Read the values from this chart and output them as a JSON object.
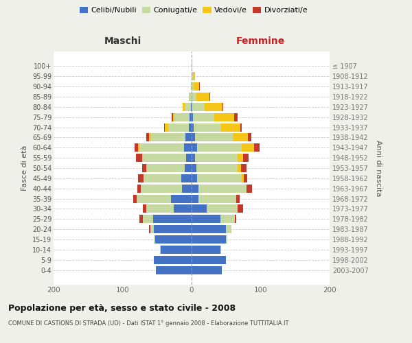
{
  "age_groups": [
    "0-4",
    "5-9",
    "10-14",
    "15-19",
    "20-24",
    "25-29",
    "30-34",
    "35-39",
    "40-44",
    "45-49",
    "50-54",
    "55-59",
    "60-64",
    "65-69",
    "70-74",
    "75-79",
    "80-84",
    "85-89",
    "90-94",
    "95-99",
    "100+"
  ],
  "birth_years": [
    "2003-2007",
    "1998-2002",
    "1993-1997",
    "1988-1992",
    "1983-1987",
    "1978-1982",
    "1973-1977",
    "1968-1972",
    "1963-1967",
    "1958-1962",
    "1953-1957",
    "1948-1952",
    "1943-1947",
    "1938-1942",
    "1933-1937",
    "1928-1932",
    "1923-1927",
    "1918-1922",
    "1913-1917",
    "1908-1912",
    "≤ 1907"
  ],
  "males_celibe": [
    52,
    55,
    45,
    53,
    55,
    56,
    26,
    30,
    14,
    15,
    10,
    8,
    11,
    9,
    4,
    3,
    1,
    0,
    0,
    0,
    0
  ],
  "males_coniugato": [
    0,
    0,
    1,
    2,
    5,
    15,
    40,
    50,
    60,
    55,
    55,
    63,
    65,
    50,
    30,
    22,
    9,
    3,
    1,
    0,
    0
  ],
  "males_vedovo": [
    0,
    0,
    0,
    0,
    0,
    0,
    0,
    0,
    0,
    0,
    1,
    1,
    2,
    3,
    5,
    2,
    3,
    1,
    0,
    0,
    0
  ],
  "males_divorziato": [
    0,
    0,
    0,
    0,
    2,
    5,
    5,
    5,
    5,
    8,
    6,
    9,
    5,
    4,
    1,
    2,
    0,
    0,
    0,
    0,
    0
  ],
  "females_nubile": [
    44,
    50,
    42,
    50,
    50,
    42,
    22,
    10,
    10,
    8,
    7,
    5,
    8,
    5,
    3,
    2,
    0,
    0,
    0,
    0,
    0
  ],
  "females_coniugata": [
    0,
    0,
    1,
    2,
    8,
    21,
    45,
    55,
    70,
    65,
    60,
    62,
    65,
    55,
    40,
    31,
    19,
    7,
    3,
    2,
    0
  ],
  "females_vedova": [
    0,
    0,
    0,
    0,
    0,
    0,
    0,
    0,
    0,
    3,
    5,
    8,
    18,
    22,
    28,
    29,
    26,
    19,
    8,
    3,
    1
  ],
  "females_divorziata": [
    0,
    0,
    0,
    0,
    0,
    2,
    8,
    5,
    8,
    5,
    8,
    8,
    8,
    5,
    2,
    5,
    1,
    1,
    1,
    0,
    0
  ],
  "color_celibe": "#4472C4",
  "color_coniugato": "#c5d9a0",
  "color_vedovo": "#f5c518",
  "color_divorziato": "#c0392b",
  "title": "Popolazione per età, sesso e stato civile - 2008",
  "subtitle": "COMUNE DI CASTIONS DI STRADA (UD) - Dati ISTAT 1° gennaio 2008 - Elaborazione TUTTITALIA.IT",
  "label_maschi": "Maschi",
  "label_femmine": "Femmine",
  "ylabel_left": "Fasce di età",
  "ylabel_right": "Anni di nascita",
  "legend_labels": [
    "Celibi/Nubili",
    "Coniugati/e",
    "Vedovi/e",
    "Divorziati/e"
  ],
  "xlim": 200,
  "bg_color": "#f0f0eb",
  "plot_bg": "#ffffff"
}
